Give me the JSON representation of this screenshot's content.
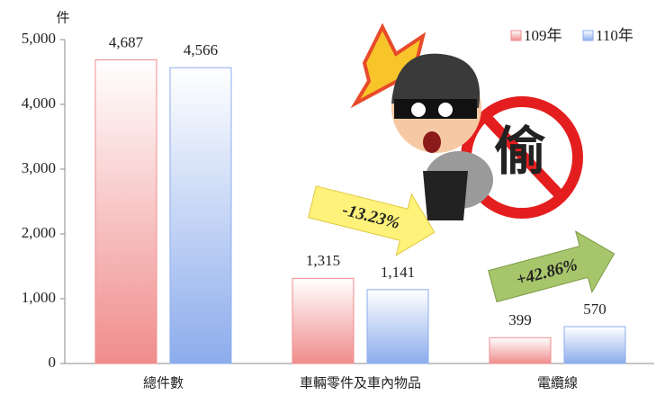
{
  "chart_data": {
    "type": "bar",
    "y_unit": "件",
    "categories": [
      "總件數",
      "車輛零件及車內物品",
      "電纜線"
    ],
    "series": [
      {
        "name": "109年",
        "color": "#f08c8c",
        "values": [
          4687,
          1315,
          399
        ],
        "value_labels": [
          "4,687",
          "1,315",
          "399"
        ]
      },
      {
        "name": "110年",
        "color": "#8cacec",
        "values": [
          4566,
          1141,
          570
        ],
        "value_labels": [
          "4,566",
          "1,141",
          "570"
        ]
      }
    ],
    "ylim": [
      0,
      5000
    ],
    "yticks": [
      0,
      {
        "value": 1000,
        "label": "1,000"
      },
      {
        "value": 2000,
        "label": "2,000"
      },
      {
        "value": 3000,
        "label": "3,000"
      },
      {
        "value": 4000,
        "label": "4,000"
      },
      {
        "value": 5000,
        "label": "5,000"
      }
    ],
    "annotations": [
      "-13.23%",
      "+42.86%"
    ],
    "sign_text": "偷",
    "legend": "top-right"
  }
}
